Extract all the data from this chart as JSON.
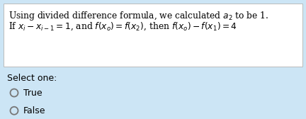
{
  "bg_color": "#cce5f5",
  "box_color": "#ffffff",
  "text_color": "#000000",
  "line1": "Using divided difference formula, we calculated $a_2$ to be 1.",
  "line2": "If $x_i - x_{i-1} = 1$, and $f(x_o) = f(x_2)$, then $f(x_o) - f(x_1) = 4$",
  "select_label": "Select one:",
  "option1": "True",
  "option2": "False",
  "fontsize_main": 8.8,
  "fontsize_select": 9.0,
  "fig_width": 4.32,
  "fig_height": 1.68,
  "dpi": 100
}
